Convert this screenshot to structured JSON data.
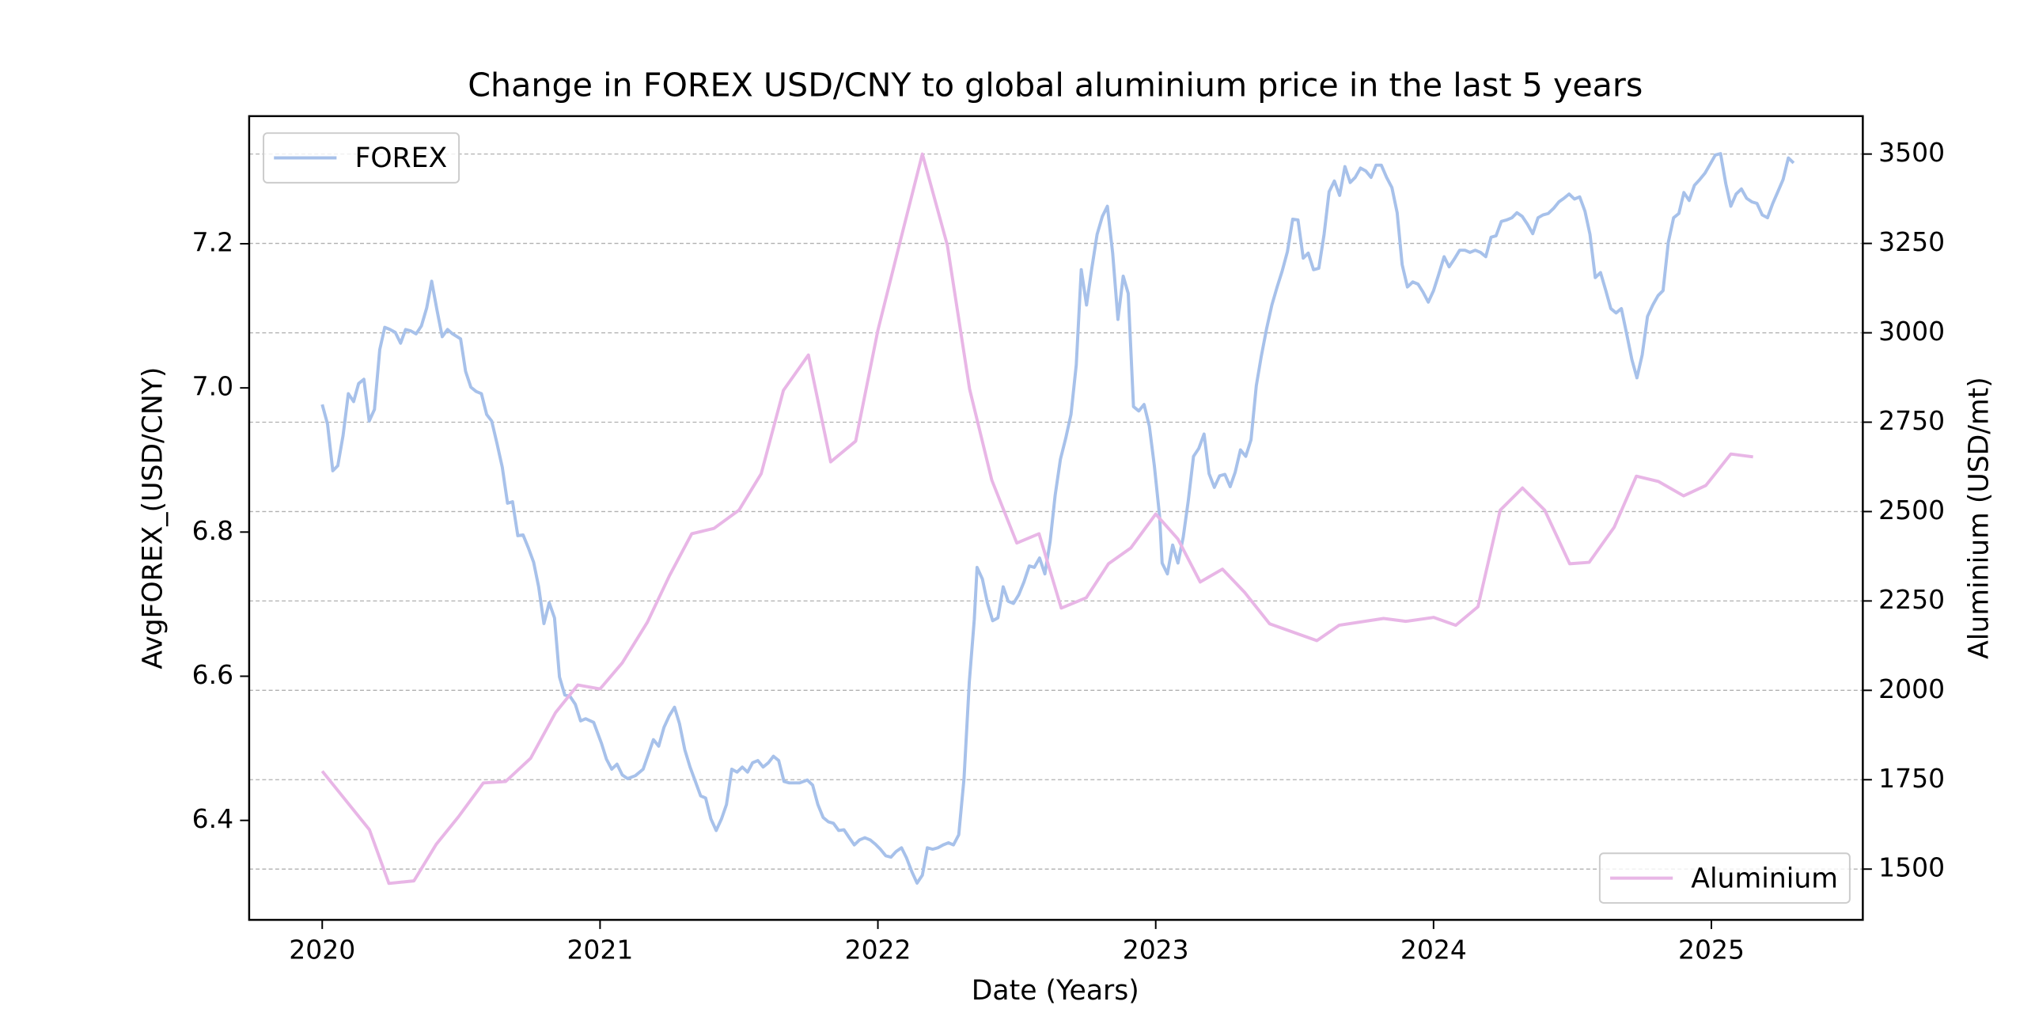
{
  "chart_data": {
    "type": "line",
    "title": "Change in FOREX USD/CNY to global aluminium price in the last 5 years",
    "x_label": "Date (Years)",
    "y_label": "AvgFOREX_(USD/CNY)",
    "y2_label": "Aluminium (USD/mt)",
    "xlim": [
      2019.737,
      2025.545
    ],
    "xticks": [
      2020,
      2021,
      2022,
      2023,
      2024,
      2025
    ],
    "ylim": [
      6.262,
      7.377
    ],
    "yticks": [
      6.4,
      6.6,
      6.8,
      {
        "value": 7,
        "label": "7.0"
      },
      7.2
    ],
    "y2lim": [
      1358,
      3606
    ],
    "y2ticks": [
      1500,
      1750,
      2000,
      2250,
      2500,
      2750,
      3000,
      3250,
      3500
    ],
    "grid": "y2",
    "series": [
      {
        "name": "FOREX",
        "color": "#a7c1ea",
        "legend": "upper left",
        "x": [
          2020.0,
          2020.019,
          2020.038,
          2020.056,
          2020.075,
          2020.094,
          2020.113,
          2020.131,
          2020.15,
          2020.169,
          2020.188,
          2020.207,
          2020.225,
          2020.244,
          2020.263,
          2020.282,
          2020.3,
          2020.319,
          2020.338,
          2020.357,
          2020.376,
          2020.394,
          2020.413,
          2020.432,
          2020.451,
          2020.469,
          2020.498,
          2020.516,
          2020.535,
          2020.554,
          2020.573,
          2020.592,
          2020.61,
          2020.629,
          2020.648,
          2020.667,
          2020.685,
          2020.704,
          2020.723,
          2020.742,
          2020.761,
          2020.779,
          2020.798,
          2020.817,
          2020.836,
          2020.854,
          2020.873,
          2020.892,
          2020.911,
          2020.93,
          2020.948,
          2020.977,
          2021.005,
          2021.023,
          2021.042,
          2021.061,
          2021.08,
          2021.099,
          2021.127,
          2021.155,
          2021.174,
          2021.192,
          2021.211,
          2021.23,
          2021.249,
          2021.268,
          2021.286,
          2021.305,
          2021.324,
          2021.343,
          2021.362,
          2021.38,
          2021.399,
          2021.418,
          2021.437,
          2021.455,
          2021.474,
          2021.493,
          2021.512,
          2021.531,
          2021.549,
          2021.568,
          2021.587,
          2021.606,
          2021.624,
          2021.643,
          2021.662,
          2021.681,
          2021.718,
          2021.746,
          2021.765,
          2021.784,
          2021.803,
          2021.822,
          2021.84,
          2021.859,
          2021.878,
          2021.897,
          2021.915,
          2021.934,
          2021.953,
          2021.972,
          2021.991,
          2022.009,
          2022.028,
          2022.047,
          2022.066,
          2022.085,
          2022.103,
          2022.122,
          2022.141,
          2022.16,
          2022.178,
          2022.197,
          2022.216,
          2022.235,
          2022.254,
          2022.272,
          2022.291,
          2022.31,
          2022.329,
          2022.347,
          2022.357,
          2022.376,
          2022.394,
          2022.413,
          2022.432,
          2022.451,
          2022.469,
          2022.488,
          2022.507,
          2022.526,
          2022.545,
          2022.563,
          2022.582,
          2022.601,
          2022.62,
          2022.638,
          2022.657,
          2022.676,
          2022.695,
          2022.714,
          2022.732,
          2022.751,
          2022.77,
          2022.789,
          2022.808,
          2022.826,
          2022.845,
          2022.864,
          2022.883,
          2022.901,
          2022.92,
          2022.939,
          2022.958,
          2022.977,
          2022.995,
          2023.014,
          2023.023,
          2023.042,
          2023.061,
          2023.08,
          2023.099,
          2023.117,
          2023.136,
          2023.155,
          2023.174,
          2023.192,
          2023.211,
          2023.23,
          2023.249,
          2023.268,
          2023.286,
          2023.305,
          2023.324,
          2023.343,
          2023.362,
          2023.38,
          2023.399,
          2023.418,
          2023.437,
          2023.455,
          2023.474,
          2023.493,
          2023.512,
          2023.531,
          2023.549,
          2023.568,
          2023.587,
          2023.606,
          2023.624,
          2023.643,
          2023.662,
          2023.681,
          2023.7,
          2023.718,
          2023.737,
          2023.756,
          2023.775,
          2023.793,
          2023.812,
          2023.831,
          2023.85,
          2023.869,
          2023.887,
          2023.906,
          2023.925,
          2023.944,
          2023.962,
          2023.981,
          2024.0,
          2024.019,
          2024.038,
          2024.056,
          2024.075,
          2024.094,
          2024.113,
          2024.131,
          2024.15,
          2024.169,
          2024.188,
          2024.207,
          2024.225,
          2024.244,
          2024.263,
          2024.282,
          2024.3,
          2024.319,
          2024.338,
          2024.357,
          2024.376,
          2024.394,
          2024.413,
          2024.432,
          2024.451,
          2024.469,
          2024.488,
          2024.507,
          2024.526,
          2024.545,
          2024.563,
          2024.582,
          2024.601,
          2024.62,
          2024.638,
          2024.657,
          2024.676,
          2024.695,
          2024.714,
          2024.732,
          2024.751,
          2024.77,
          2024.789,
          2024.808,
          2024.826,
          2024.845,
          2024.864,
          2024.883,
          2024.901,
          2024.92,
          2024.939,
          2024.958,
          2024.977,
          2024.995,
          2025.014,
          2025.033,
          2025.052,
          2025.07,
          2025.089,
          2025.108,
          2025.127,
          2025.146,
          2025.164,
          2025.183,
          2025.202,
          2025.221,
          2025.239,
          2025.258,
          2025.277,
          2025.296
        ],
        "values": [
          6.977,
          6.95,
          6.885,
          6.892,
          6.934,
          6.992,
          6.981,
          7.006,
          7.012,
          6.954,
          6.97,
          7.053,
          7.084,
          7.081,
          7.077,
          7.062,
          7.081,
          7.079,
          7.075,
          7.086,
          7.111,
          7.148,
          7.108,
          7.071,
          7.081,
          7.075,
          7.068,
          7.023,
          7.001,
          6.995,
          6.992,
          6.963,
          6.954,
          6.923,
          6.89,
          6.84,
          6.842,
          6.795,
          6.796,
          6.778,
          6.758,
          6.724,
          6.673,
          6.702,
          6.681,
          6.599,
          6.574,
          6.572,
          6.561,
          6.538,
          6.541,
          6.536,
          6.507,
          6.485,
          6.471,
          6.478,
          6.463,
          6.458,
          6.462,
          6.471,
          6.492,
          6.512,
          6.503,
          6.529,
          6.545,
          6.557,
          6.534,
          6.498,
          6.474,
          6.454,
          6.434,
          6.431,
          6.402,
          6.386,
          6.402,
          6.422,
          6.471,
          6.467,
          6.474,
          6.467,
          6.48,
          6.483,
          6.474,
          6.48,
          6.489,
          6.483,
          6.454,
          6.452,
          6.452,
          6.456,
          6.449,
          6.422,
          6.404,
          6.398,
          6.396,
          6.386,
          6.387,
          6.376,
          6.366,
          6.373,
          6.376,
          6.373,
          6.367,
          6.36,
          6.351,
          6.349,
          6.357,
          6.362,
          6.348,
          6.329,
          6.313,
          6.324,
          6.362,
          6.36,
          6.362,
          6.366,
          6.369,
          6.366,
          6.38,
          6.458,
          6.592,
          6.679,
          6.751,
          6.735,
          6.702,
          6.677,
          6.681,
          6.724,
          6.704,
          6.701,
          6.713,
          6.731,
          6.753,
          6.751,
          6.764,
          6.742,
          6.787,
          6.851,
          6.901,
          6.93,
          6.963,
          7.032,
          7.164,
          7.115,
          7.166,
          7.213,
          7.238,
          7.252,
          7.187,
          7.095,
          7.155,
          7.131,
          6.974,
          6.968,
          6.977,
          6.947,
          6.892,
          6.822,
          6.757,
          6.742,
          6.782,
          6.757,
          6.793,
          6.843,
          6.905,
          6.916,
          6.936,
          6.881,
          6.862,
          6.878,
          6.88,
          6.863,
          6.883,
          6.914,
          6.905,
          6.928,
          7.003,
          7.044,
          7.082,
          7.115,
          7.14,
          7.162,
          7.189,
          7.234,
          7.233,
          7.18,
          7.187,
          7.164,
          7.166,
          7.213,
          7.272,
          7.287,
          7.267,
          7.307,
          7.285,
          7.292,
          7.305,
          7.301,
          7.292,
          7.309,
          7.309,
          7.292,
          7.278,
          7.243,
          7.171,
          7.14,
          7.147,
          7.144,
          7.133,
          7.119,
          7.135,
          7.158,
          7.182,
          7.168,
          7.179,
          7.191,
          7.191,
          7.188,
          7.191,
          7.188,
          7.182,
          7.209,
          7.211,
          7.231,
          7.233,
          7.236,
          7.243,
          7.238,
          7.227,
          7.214,
          7.236,
          7.24,
          7.242,
          7.249,
          7.258,
          7.263,
          7.269,
          7.262,
          7.265,
          7.245,
          7.213,
          7.153,
          7.16,
          7.135,
          7.11,
          7.104,
          7.11,
          7.075,
          7.039,
          7.014,
          7.046,
          7.099,
          7.115,
          7.128,
          7.135,
          7.202,
          7.236,
          7.242,
          7.271,
          7.26,
          7.281,
          7.289,
          7.298,
          7.31,
          7.323,
          7.325,
          7.283,
          7.252,
          7.269,
          7.276,
          7.263,
          7.258,
          7.256,
          7.24,
          7.236,
          7.256,
          7.272,
          7.289,
          7.319,
          7.312
        ]
      },
      {
        "name": "Aluminium",
        "color": "#e8b6e6",
        "axis": "y2",
        "legend": "lower right",
        "x": [
          2020.0,
          2020.17,
          2020.24,
          2020.33,
          2020.41,
          2020.49,
          2020.58,
          2020.66,
          2020.75,
          2020.84,
          2020.92,
          2021.0,
          2021.08,
          2021.17,
          2021.25,
          2021.33,
          2021.41,
          2021.5,
          2021.58,
          2021.66,
          2021.75,
          2021.83,
          2021.92,
          2022.0,
          2022.08,
          2022.16,
          2022.25,
          2022.33,
          2022.41,
          2022.5,
          2022.58,
          2022.66,
          2022.75,
          2022.83,
          2022.91,
          2023.0,
          2023.08,
          2023.16,
          2023.24,
          2023.32,
          2023.41,
          2023.58,
          2023.66,
          2023.82,
          2023.9,
          2024.0,
          2024.08,
          2024.16,
          2024.24,
          2024.32,
          2024.4,
          2024.49,
          2024.56,
          2024.65,
          2024.73,
          2024.81,
          2024.9,
          2024.98,
          2025.07,
          2025.15
        ],
        "values": [
          1774,
          1610,
          1460,
          1467,
          1569,
          1646,
          1741,
          1745,
          1810,
          1938,
          2015,
          2004,
          2077,
          2190,
          2321,
          2438,
          2453,
          2504,
          2606,
          2839,
          2938,
          2639,
          2697,
          3007,
          3255,
          3500,
          3245,
          2843,
          2588,
          2412,
          2438,
          2230,
          2259,
          2354,
          2398,
          2493,
          2423,
          2303,
          2339,
          2274,
          2186,
          2139,
          2182,
          2201,
          2193,
          2204,
          2182,
          2234,
          2504,
          2566,
          2504,
          2354,
          2358,
          2456,
          2599,
          2584,
          2544,
          2573,
          2661,
          2653
        ]
      }
    ]
  }
}
